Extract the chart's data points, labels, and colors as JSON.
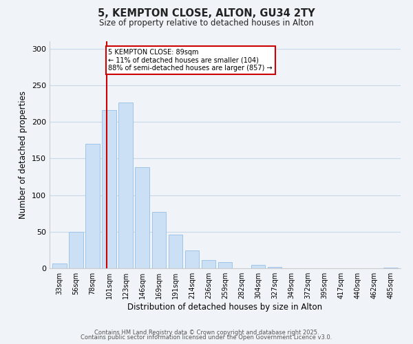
{
  "title": "5, KEMPTON CLOSE, ALTON, GU34 2TY",
  "subtitle": "Size of property relative to detached houses in Alton",
  "xlabel": "Distribution of detached houses by size in Alton",
  "ylabel": "Number of detached properties",
  "bar_labels": [
    "33sqm",
    "56sqm",
    "78sqm",
    "101sqm",
    "123sqm",
    "146sqm",
    "169sqm",
    "191sqm",
    "214sqm",
    "236sqm",
    "259sqm",
    "282sqm",
    "304sqm",
    "327sqm",
    "349sqm",
    "372sqm",
    "395sqm",
    "417sqm",
    "440sqm",
    "462sqm",
    "485sqm"
  ],
  "bar_heights": [
    7,
    50,
    170,
    216,
    226,
    138,
    77,
    46,
    24,
    11,
    8,
    0,
    5,
    2,
    0,
    0,
    0,
    0,
    0,
    0,
    1
  ],
  "bar_color": "#cce0f5",
  "bar_edge_color": "#a0c4e8",
  "vline_color": "#cc0000",
  "annotation_title": "5 KEMPTON CLOSE: 89sqm",
  "annotation_line1": "← 11% of detached houses are smaller (104)",
  "annotation_line2": "88% of semi-detached houses are larger (857) →",
  "annotation_box_color": "#ffffff",
  "annotation_box_edge": "#cc0000",
  "ylim": [
    0,
    310
  ],
  "yticks": [
    0,
    50,
    100,
    150,
    200,
    250,
    300
  ],
  "footer1": "Contains HM Land Registry data © Crown copyright and database right 2025.",
  "footer2": "Contains public sector information licensed under the Open Government Licence v3.0.",
  "bg_color": "#f0f4f8",
  "grid_color": "#c8d8e8"
}
